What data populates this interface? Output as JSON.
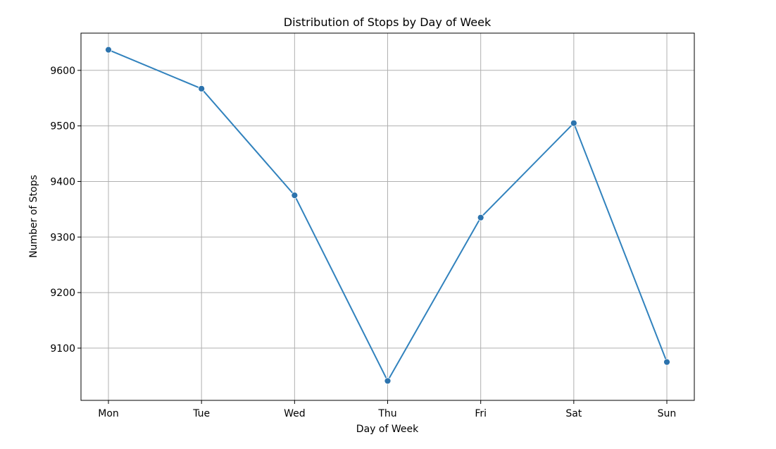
{
  "chart_data": {
    "type": "line",
    "title": "Distribution of Stops by Day of Week",
    "xlabel": "Day of Week",
    "ylabel": "Number of Stops",
    "categories": [
      "Mon",
      "Tue",
      "Wed",
      "Thu",
      "Fri",
      "Sat",
      "Sun"
    ],
    "values": [
      9637,
      9567,
      9375,
      9041,
      9335,
      9505,
      9075
    ],
    "ylim": [
      9006,
      9667
    ],
    "yticks": [
      9100,
      9200,
      9300,
      9400,
      9500,
      9600
    ],
    "grid": true,
    "marker": "circle",
    "line_color": "#3182bd",
    "marker_color": "#2c73ad"
  }
}
